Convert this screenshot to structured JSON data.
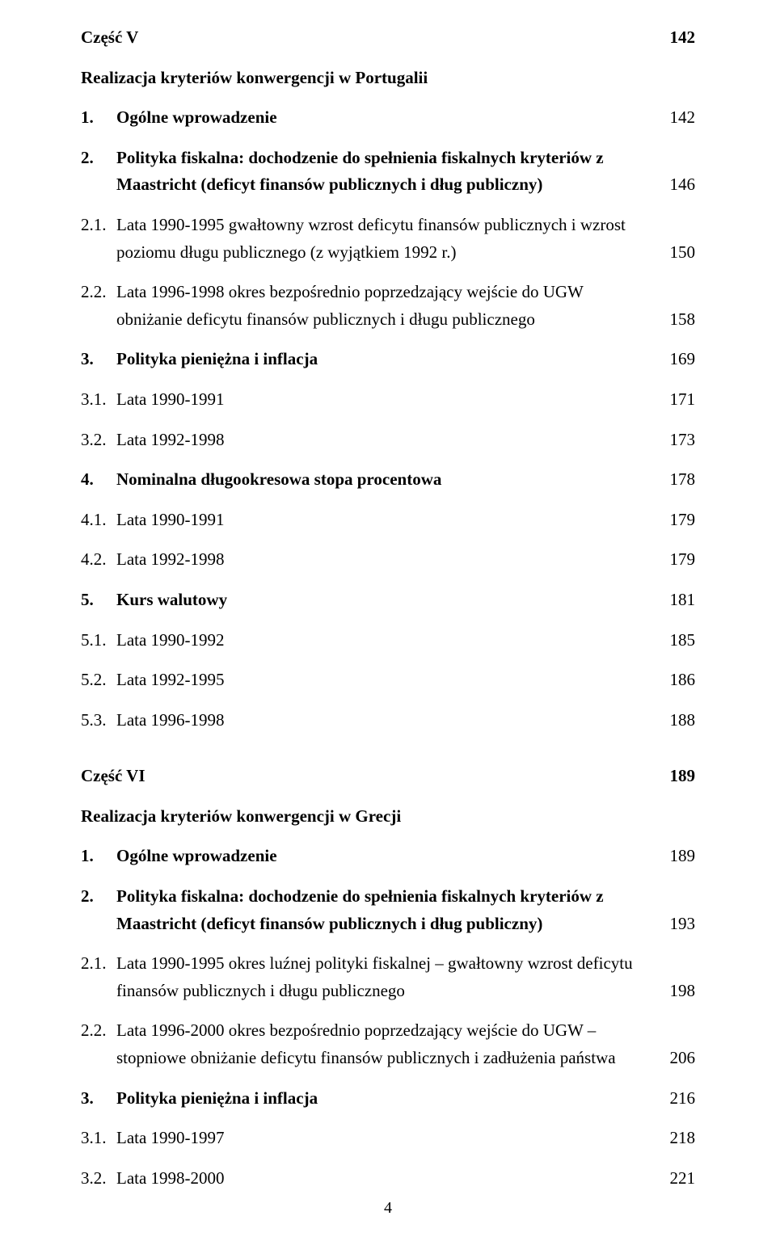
{
  "page_number": "4",
  "colors": {
    "text": "#000000",
    "background": "#ffffff"
  },
  "typography": {
    "font_family": "Times New Roman",
    "base_fontsize_pt": 16,
    "bold_weight": 700
  },
  "sections": {
    "part5": {
      "heading": "Część V",
      "heading_page": "142",
      "subheading": "Realizacja kryteriów konwergencji w Portugalii",
      "items": [
        {
          "num": "1.",
          "text": "Ogólne wprowadzenie",
          "page": "142",
          "bold": true
        },
        {
          "num": "2.",
          "text_line1": "Polityka fiskalna: dochodzenie do spełnienia fiskalnych kryteriów z",
          "text_line2": "Maastricht (deficyt finansów publicznych i dług publiczny)",
          "page": "146",
          "bold": true
        },
        {
          "num": "2.1.",
          "text_line1": "Lata 1990-1995 gwałtowny wzrost deficytu finansów publicznych i wzrost",
          "text_line2": "poziomu długu publicznego (z wyjątkiem 1992 r.)",
          "page": "150",
          "bold": false
        },
        {
          "num": "2.2.",
          "text_line1": "Lata 1996-1998 okres bezpośrednio poprzedzający wejście do UGW",
          "text_line2": "obniżanie deficytu finansów publicznych i długu publicznego",
          "page": "158",
          "bold": false
        },
        {
          "num": "3.",
          "text": "Polityka pieniężna i inflacja",
          "page": "169",
          "bold": true
        },
        {
          "num": "3.1.",
          "text": "Lata 1990-1991",
          "page": "171",
          "bold": false
        },
        {
          "num": "3.2.",
          "text": "Lata 1992-1998",
          "page": "173",
          "bold": false
        },
        {
          "num": "4.",
          "text": "Nominalna długookresowa stopa procentowa",
          "page": "178",
          "bold": true
        },
        {
          "num": "4.1.",
          "text": "Lata 1990-1991",
          "page": "179",
          "bold": false
        },
        {
          "num": "4.2.",
          "text": "Lata 1992-1998",
          "page": "179",
          "bold": false
        },
        {
          "num": "5.",
          "text": "Kurs walutowy",
          "page": "181",
          "bold": true
        },
        {
          "num": "5.1.",
          "text": "Lata 1990-1992",
          "page": "185",
          "bold": false
        },
        {
          "num": "5.2.",
          "text": "Lata 1992-1995",
          "page": "186",
          "bold": false
        },
        {
          "num": "5.3.",
          "text": "Lata 1996-1998",
          "page": "188",
          "bold": false
        }
      ]
    },
    "part6": {
      "heading": "Część VI",
      "heading_page": "189",
      "subheading": "Realizacja kryteriów konwergencji w Grecji",
      "items": [
        {
          "num": "1.",
          "text": "Ogólne wprowadzenie",
          "page": "189",
          "bold": true
        },
        {
          "num": "2.",
          "text_line1": "Polityka fiskalna: dochodzenie do spełnienia fiskalnych kryteriów z",
          "text_line2": "Maastricht (deficyt finansów publicznych i dług publiczny)",
          "page": "193",
          "bold": true
        },
        {
          "num": "2.1.",
          "text_line1": "Lata 1990-1995 okres luźnej polityki fiskalnej – gwałtowny wzrost deficytu",
          "text_line2": "finansów publicznych i długu publicznego",
          "page": "198",
          "bold": false
        },
        {
          "num": "2.2.",
          "text_line1": "Lata 1996-2000 okres bezpośrednio poprzedzający wejście do UGW –",
          "text_line2": "stopniowe obniżanie deficytu finansów publicznych i zadłużenia państwa",
          "page": "206",
          "bold": false
        },
        {
          "num": "3.",
          "text": "Polityka pieniężna i inflacja",
          "page": "216",
          "bold": true
        },
        {
          "num": "3.1.",
          "text": "Lata 1990-1997",
          "page": "218",
          "bold": false
        },
        {
          "num": "3.2.",
          "text": "Lata 1998-2000",
          "page": "221",
          "bold": false
        }
      ]
    }
  }
}
